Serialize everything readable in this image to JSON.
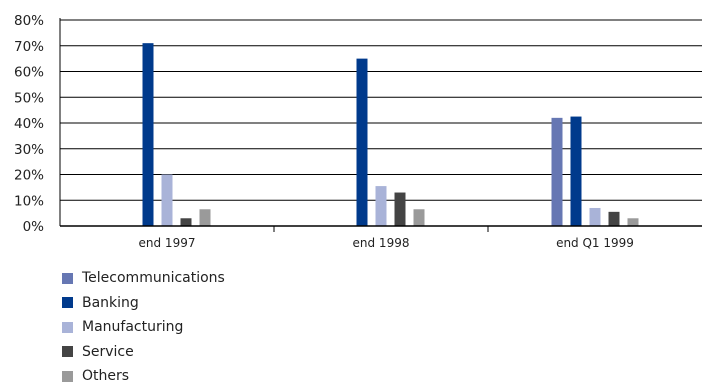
{
  "chart_data": {
    "type": "bar",
    "categories": [
      "end 1997",
      "end 1998",
      "end Q1 1999"
    ],
    "series": [
      {
        "name": "Telecommunications",
        "color": "#6677b3",
        "values": [
          0,
          0,
          42
        ]
      },
      {
        "name": "Banking",
        "color": "#003a8c",
        "values": [
          71,
          65,
          42.5
        ]
      },
      {
        "name": "Manufacturing",
        "color": "#a9b3d8",
        "values": [
          20,
          15.5,
          7
        ]
      },
      {
        "name": "Service",
        "color": "#444444",
        "values": [
          3,
          13,
          5.5
        ]
      },
      {
        "name": "Others",
        "color": "#9a9a9a",
        "values": [
          6.5,
          6.5,
          3
        ]
      }
    ],
    "ylim": [
      0,
      80
    ],
    "yticks": [
      "0%",
      "10%",
      "20%",
      "30%",
      "40%",
      "50%",
      "60%",
      "70%",
      "80%"
    ],
    "grid": true,
    "legend_placement": "bottom-left",
    "title": "",
    "xlabel": "",
    "ylabel": ""
  }
}
